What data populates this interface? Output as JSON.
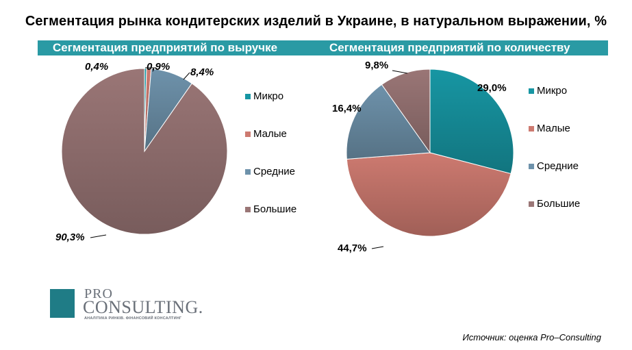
{
  "title": "Сегментация рынка кондитерских изделий в Украине, в натуральном выражении, %",
  "headers": {
    "left": "Сегментация предприятий по выручке",
    "right": "Сегментация предприятий по количеству"
  },
  "legend_items": [
    "Микро",
    "Малые",
    "Средние",
    "Большие"
  ],
  "colors": {
    "header": "#2a9aa4",
    "micro": "#1796a3",
    "small": "#cd7a70",
    "medium": "#6e92ab",
    "large": "#9a7676"
  },
  "chart_data": [
    {
      "type": "pie",
      "title": "Сегментация предприятий по выручке",
      "categories": [
        "Микро",
        "Малые",
        "Средние",
        "Большие"
      ],
      "values": [
        0.4,
        0.9,
        8.4,
        90.3
      ],
      "labels": [
        "0,4%",
        "0,9%",
        "8,4%",
        "90,3%"
      ],
      "legend": "right"
    },
    {
      "type": "pie",
      "title": "Сегментация предприятий по количеству",
      "categories": [
        "Микро",
        "Малые",
        "Средние",
        "Большие"
      ],
      "values": [
        29.0,
        44.7,
        16.4,
        9.8
      ],
      "labels": [
        "29,0%",
        "44,7%",
        "16,4%",
        "9,8%"
      ],
      "legend": "right"
    }
  ],
  "logo": {
    "line1": "PRO",
    "line2": "CONSULTING.",
    "tagline": "АНАЛІТИКА РИНКІВ. ФІНАНСОВИЙ КОНСАЛТИНГ"
  },
  "source": "Источник: оценка Pro–Consulting"
}
